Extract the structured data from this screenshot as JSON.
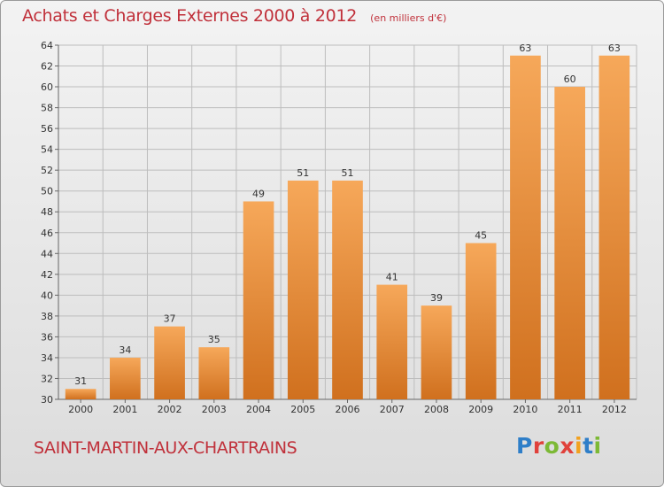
{
  "title": "Achats et Charges Externes 2000 à 2012",
  "unit_label": "(en milliers d'€)",
  "commune": "SAINT-MARTIN-AUX-CHARTRAINS",
  "logo": {
    "letters": [
      "P",
      "r",
      "o",
      "x",
      "i",
      "t",
      "i"
    ],
    "colors": [
      "#2e7ec8",
      "#e0413b",
      "#7cb935",
      "#e0413b",
      "#f2a11f",
      "#2e7ec8",
      "#7cb935"
    ]
  },
  "colors": {
    "title": "#c0303a",
    "bar_light": "#f6a85a",
    "bar_dark": "#d0701e",
    "grid": "#bdbdbd"
  },
  "chart_data": {
    "type": "bar",
    "categories": [
      "2000",
      "2001",
      "2002",
      "2003",
      "2004",
      "2005",
      "2006",
      "2007",
      "2008",
      "2009",
      "2010",
      "2011",
      "2012"
    ],
    "values": [
      31,
      34,
      37,
      35,
      49,
      51,
      51,
      41,
      39,
      45,
      63,
      60,
      63
    ],
    "ylim": [
      30,
      64
    ],
    "yticks": [
      30,
      32,
      34,
      36,
      38,
      40,
      42,
      44,
      46,
      48,
      50,
      52,
      54,
      56,
      58,
      60,
      62,
      64
    ],
    "grid": true,
    "data_labels": true
  }
}
